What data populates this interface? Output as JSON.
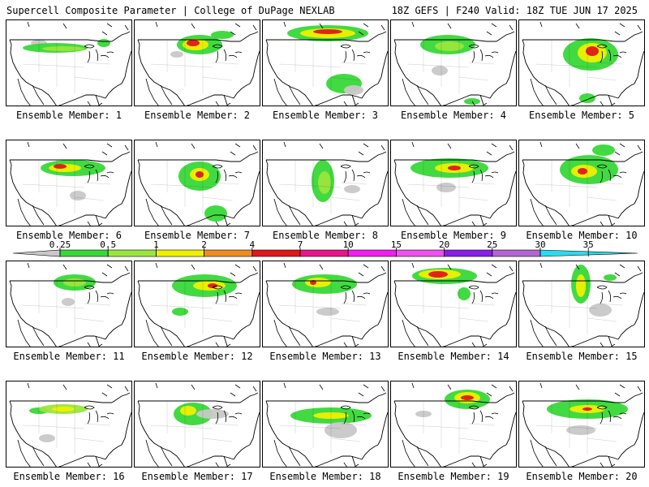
{
  "header": {
    "left": "Supercell Composite Parameter | College of DuPage NEXLAB",
    "right": "18Z GEFS | F240 Valid: 18Z TUE JUN 17 2025"
  },
  "colors": {
    "c0_25": "#c8c8c8",
    "c0_5": "#38d838",
    "c1": "#9ae63c",
    "c2": "#f0f000",
    "c4": "#f08c1e",
    "c7": "#e01818",
    "c10": "#e8148c",
    "c15": "#f01ef0",
    "c20": "#f050f0",
    "c25": "#8a1ee6",
    "c30": "#b464d2",
    "c35": "#28dcf0",
    "map_lines": "#000000"
  },
  "legend": {
    "ticks": [
      "0.25",
      "0.5",
      "1",
      "2",
      "4",
      "7",
      "10",
      "15",
      "20",
      "25",
      "30",
      "35"
    ],
    "segment_colors": [
      "#c8c8c8",
      "#38d838",
      "#9ae63c",
      "#f0f000",
      "#f08c1e",
      "#e01818",
      "#e8148c",
      "#f01ef0",
      "#f050f0",
      "#8a1ee6",
      "#b464d2",
      "#28dcf0"
    ]
  },
  "members": [
    {
      "label": "Ensemble Member: 1",
      "blobs": [
        [
          "#c8c8c8",
          40,
          28,
          10,
          4
        ],
        [
          "#38d838",
          60,
          34,
          40,
          6
        ],
        [
          "#9ae63c",
          70,
          35,
          26,
          3
        ],
        [
          "#38d838",
          120,
          28,
          8,
          5
        ]
      ]
    },
    {
      "label": "Ensemble Member: 2",
      "blobs": [
        [
          "#38d838",
          80,
          30,
          28,
          12
        ],
        [
          "#f0f000",
          75,
          30,
          16,
          7
        ],
        [
          "#e01818",
          72,
          28,
          8,
          4
        ],
        [
          "#38d838",
          108,
          18,
          14,
          5
        ],
        [
          "#c8c8c8",
          52,
          42,
          8,
          4
        ]
      ]
    },
    {
      "label": "Ensemble Member: 3",
      "blobs": [
        [
          "#38d838",
          80,
          16,
          50,
          10
        ],
        [
          "#f0f000",
          80,
          16,
          34,
          6
        ],
        [
          "#e01818",
          80,
          14,
          18,
          3
        ],
        [
          "#38d838",
          100,
          78,
          22,
          12
        ],
        [
          "#c8c8c8",
          112,
          86,
          12,
          6
        ]
      ]
    },
    {
      "label": "Ensemble Member: 4",
      "blobs": [
        [
          "#38d838",
          70,
          30,
          34,
          12
        ],
        [
          "#9ae63c",
          72,
          32,
          18,
          6
        ],
        [
          "#c8c8c8",
          60,
          62,
          10,
          6
        ],
        [
          "#38d838",
          100,
          100,
          10,
          4
        ]
      ]
    },
    {
      "label": "Ensemble Member: 5",
      "blobs": [
        [
          "#38d838",
          88,
          42,
          34,
          20
        ],
        [
          "#f0f000",
          90,
          40,
          18,
          12
        ],
        [
          "#e01818",
          90,
          38,
          8,
          6
        ],
        [
          "#38d838",
          84,
          96,
          10,
          6
        ]
      ]
    },
    {
      "label": "Ensemble Member: 6",
      "blobs": [
        [
          "#38d838",
          82,
          34,
          40,
          10
        ],
        [
          "#f0f000",
          72,
          34,
          20,
          5
        ],
        [
          "#e01818",
          66,
          32,
          8,
          3
        ],
        [
          "#c8c8c8",
          88,
          68,
          10,
          6
        ]
      ]
    },
    {
      "label": "Ensemble Member: 7",
      "blobs": [
        [
          "#38d838",
          80,
          44,
          26,
          18
        ],
        [
          "#f0f000",
          80,
          42,
          12,
          8
        ],
        [
          "#e01818",
          80,
          42,
          5,
          4
        ],
        [
          "#38d838",
          100,
          90,
          14,
          10
        ]
      ]
    },
    {
      "label": "Ensemble Member: 8",
      "blobs": [
        [
          "#38d838",
          74,
          50,
          14,
          26
        ],
        [
          "#9ae63c",
          76,
          52,
          8,
          14
        ],
        [
          "#c8c8c8",
          110,
          60,
          10,
          5
        ]
      ]
    },
    {
      "label": "Ensemble Member: 9",
      "blobs": [
        [
          "#38d838",
          72,
          34,
          48,
          12
        ],
        [
          "#f0f000",
          78,
          34,
          24,
          6
        ],
        [
          "#e01818",
          78,
          34,
          8,
          3
        ],
        [
          "#c8c8c8",
          68,
          58,
          12,
          6
        ]
      ]
    },
    {
      "label": "Ensemble Member: 10",
      "blobs": [
        [
          "#38d838",
          86,
          36,
          36,
          18
        ],
        [
          "#f0f000",
          80,
          38,
          16,
          8
        ],
        [
          "#e01818",
          78,
          38,
          6,
          4
        ],
        [
          "#38d838",
          104,
          12,
          14,
          7
        ]
      ]
    },
    {
      "label": "Ensemble Member: 11",
      "blobs": [
        [
          "#38d838",
          84,
          26,
          26,
          10
        ],
        [
          "#9ae63c",
          84,
          26,
          14,
          5
        ],
        [
          "#c8c8c8",
          76,
          50,
          8,
          5
        ]
      ]
    },
    {
      "label": "Ensemble Member: 12",
      "blobs": [
        [
          "#38d838",
          86,
          30,
          40,
          14
        ],
        [
          "#f0f000",
          92,
          30,
          20,
          6
        ],
        [
          "#e01818",
          96,
          30,
          6,
          3
        ],
        [
          "#38d838",
          56,
          62,
          10,
          5
        ]
      ]
    },
    {
      "label": "Ensemble Member: 13",
      "blobs": [
        [
          "#38d838",
          76,
          28,
          40,
          12
        ],
        [
          "#f0f000",
          68,
          26,
          16,
          6
        ],
        [
          "#e01818",
          62,
          26,
          4,
          3
        ],
        [
          "#c8c8c8",
          80,
          62,
          14,
          5
        ]
      ]
    },
    {
      "label": "Ensemble Member: 14",
      "blobs": [
        [
          "#38d838",
          66,
          18,
          40,
          10
        ],
        [
          "#f0f000",
          60,
          16,
          26,
          6
        ],
        [
          "#e01818",
          58,
          16,
          12,
          4
        ],
        [
          "#38d838",
          90,
          40,
          8,
          8
        ]
      ]
    },
    {
      "label": "Ensemble Member: 15",
      "blobs": [
        [
          "#38d838",
          76,
          28,
          12,
          24
        ],
        [
          "#f0f000",
          76,
          30,
          6,
          14
        ],
        [
          "#c8c8c8",
          100,
          60,
          14,
          8
        ],
        [
          "#38d838",
          112,
          20,
          8,
          4
        ]
      ]
    },
    {
      "label": "Ensemble Member: 16",
      "blobs": [
        [
          "#38d838",
          40,
          36,
          12,
          4
        ],
        [
          "#9ae63c",
          70,
          34,
          30,
          6
        ],
        [
          "#f0f000",
          70,
          34,
          14,
          3
        ],
        [
          "#c8c8c8",
          50,
          70,
          10,
          5
        ]
      ]
    },
    {
      "label": "Ensemble Member: 17",
      "blobs": [
        [
          "#38d838",
          72,
          40,
          24,
          14
        ],
        [
          "#f0f000",
          66,
          36,
          10,
          6
        ],
        [
          "#c8c8c8",
          96,
          40,
          20,
          6
        ]
      ]
    },
    {
      "label": "Ensemble Member: 18",
      "blobs": [
        [
          "#38d838",
          84,
          42,
          50,
          10
        ],
        [
          "#f0f000",
          84,
          42,
          22,
          4
        ],
        [
          "#c8c8c8",
          96,
          60,
          20,
          10
        ]
      ]
    },
    {
      "label": "Ensemble Member: 19",
      "blobs": [
        [
          "#38d838",
          94,
          22,
          28,
          12
        ],
        [
          "#f0f000",
          94,
          20,
          16,
          7
        ],
        [
          "#e01818",
          94,
          20,
          8,
          3
        ],
        [
          "#c8c8c8",
          40,
          40,
          10,
          4
        ]
      ]
    },
    {
      "label": "Ensemble Member: 20",
      "blobs": [
        [
          "#38d838",
          84,
          34,
          50,
          12
        ],
        [
          "#f0f000",
          84,
          34,
          22,
          5
        ],
        [
          "#e01818",
          84,
          34,
          6,
          2
        ],
        [
          "#c8c8c8",
          76,
          60,
          18,
          6
        ]
      ]
    }
  ]
}
